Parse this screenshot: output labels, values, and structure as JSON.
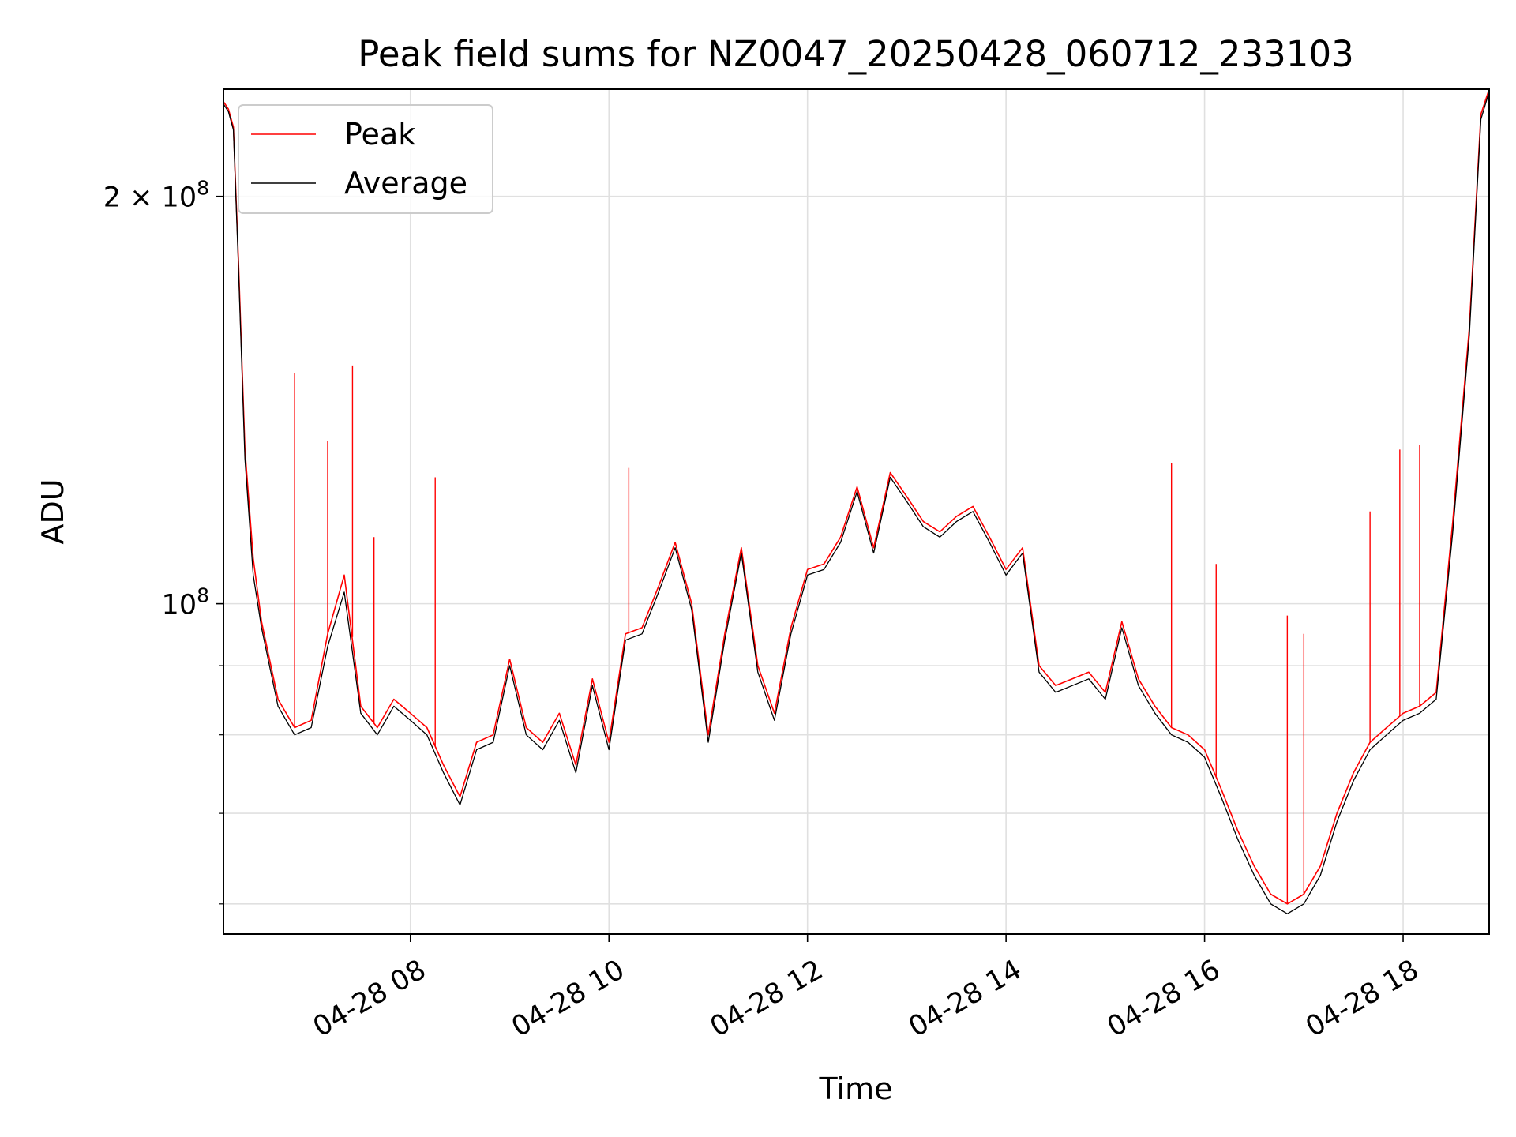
{
  "chart_data": {
    "type": "line",
    "title": "Peak field sums for NZ0047_20250428_060712_233103",
    "xlabel": "Time",
    "ylabel": "ADU",
    "y_scale": "log",
    "xlim": [
      "2025-04-28 06:07",
      "2025-04-28 18:52"
    ],
    "ylim": [
      57000000,
      240000000
    ],
    "x_ticks": [
      {
        "value": "2025-04-28 08:00",
        "label": "04-28 08"
      },
      {
        "value": "2025-04-28 10:00",
        "label": "04-28 10"
      },
      {
        "value": "2025-04-28 12:00",
        "label": "04-28 12"
      },
      {
        "value": "2025-04-28 14:00",
        "label": "04-28 14"
      },
      {
        "value": "2025-04-28 16:00",
        "label": "04-28 16"
      },
      {
        "value": "2025-04-28 18:00",
        "label": "04-28 18"
      }
    ],
    "y_major_ticks": [
      {
        "value": 100000000,
        "label": "10^8",
        "mantissa": "10",
        "exponent": "8"
      },
      {
        "value": 200000000,
        "label": "2×10^8",
        "mantissa": "2 × 10",
        "exponent": "8"
      }
    ],
    "y_minor_ticks": [
      60000000,
      70000000,
      80000000,
      90000000
    ],
    "grid": true,
    "legend_position": "top-left",
    "series": [
      {
        "name": "Peak",
        "color": "#ff0000",
        "x": [
          "2025-04-28 06:07",
          "2025-04-28 06:10",
          "2025-04-28 06:13",
          "2025-04-28 06:16",
          "2025-04-28 06:20",
          "2025-04-28 06:25",
          "2025-04-28 06:30",
          "2025-04-28 06:40",
          "2025-04-28 06:50",
          "2025-04-28 07:00",
          "2025-04-28 07:10",
          "2025-04-28 07:20",
          "2025-04-28 07:30",
          "2025-04-28 07:40",
          "2025-04-28 07:50",
          "2025-04-28 08:00",
          "2025-04-28 08:10",
          "2025-04-28 08:20",
          "2025-04-28 08:30",
          "2025-04-28 08:40",
          "2025-04-28 08:50",
          "2025-04-28 09:00",
          "2025-04-28 09:10",
          "2025-04-28 09:20",
          "2025-04-28 09:30",
          "2025-04-28 09:40",
          "2025-04-28 09:50",
          "2025-04-28 10:00",
          "2025-04-28 10:10",
          "2025-04-28 10:20",
          "2025-04-28 10:30",
          "2025-04-28 10:40",
          "2025-04-28 10:50",
          "2025-04-28 11:00",
          "2025-04-28 11:10",
          "2025-04-28 11:20",
          "2025-04-28 11:30",
          "2025-04-28 11:40",
          "2025-04-28 11:50",
          "2025-04-28 12:00",
          "2025-04-28 12:10",
          "2025-04-28 12:20",
          "2025-04-28 12:30",
          "2025-04-28 12:40",
          "2025-04-28 12:50",
          "2025-04-28 13:00",
          "2025-04-28 13:10",
          "2025-04-28 13:20",
          "2025-04-28 13:30",
          "2025-04-28 13:40",
          "2025-04-28 13:50",
          "2025-04-28 14:00",
          "2025-04-28 14:10",
          "2025-04-28 14:20",
          "2025-04-28 14:30",
          "2025-04-28 14:40",
          "2025-04-28 14:50",
          "2025-04-28 15:00",
          "2025-04-28 15:10",
          "2025-04-28 15:20",
          "2025-04-28 15:30",
          "2025-04-28 15:40",
          "2025-04-28 15:50",
          "2025-04-28 16:00",
          "2025-04-28 16:10",
          "2025-04-28 16:20",
          "2025-04-28 16:30",
          "2025-04-28 16:40",
          "2025-04-28 16:50",
          "2025-04-28 17:00",
          "2025-04-28 17:10",
          "2025-04-28 17:20",
          "2025-04-28 17:30",
          "2025-04-28 17:40",
          "2025-04-28 17:50",
          "2025-04-28 18:00",
          "2025-04-28 18:10",
          "2025-04-28 18:20",
          "2025-04-28 18:30",
          "2025-04-28 18:40",
          "2025-04-28 18:47",
          "2025-04-28 18:52"
        ],
        "y": [
          235000000,
          232000000,
          225000000,
          180000000,
          130000000,
          108000000,
          97000000,
          85000000,
          81000000,
          82000000,
          95000000,
          105000000,
          84000000,
          81000000,
          85000000,
          83000000,
          81000000,
          76000000,
          72000000,
          79000000,
          80000000,
          91000000,
          81000000,
          79000000,
          83000000,
          76000000,
          88000000,
          79000000,
          95000000,
          96000000,
          103000000,
          111000000,
          100000000,
          80000000,
          95000000,
          110000000,
          90000000,
          83000000,
          96000000,
          106000000,
          107000000,
          112000000,
          122000000,
          110000000,
          125000000,
          120000000,
          115000000,
          113000000,
          116000000,
          118000000,
          112000000,
          106000000,
          110000000,
          90000000,
          87000000,
          88000000,
          89000000,
          86000000,
          97000000,
          88000000,
          84000000,
          81000000,
          80000000,
          78000000,
          73000000,
          68000000,
          64000000,
          61000000,
          60000000,
          61000000,
          64000000,
          70000000,
          75000000,
          79000000,
          81000000,
          83000000,
          84000000,
          86000000,
          115000000,
          160000000,
          230000000,
          240000000
        ]
      },
      {
        "name": "Average",
        "color": "#000000",
        "x": [
          "2025-04-28 06:07",
          "2025-04-28 06:10",
          "2025-04-28 06:13",
          "2025-04-28 06:16",
          "2025-04-28 06:20",
          "2025-04-28 06:25",
          "2025-04-28 06:30",
          "2025-04-28 06:40",
          "2025-04-28 06:50",
          "2025-04-28 07:00",
          "2025-04-28 07:10",
          "2025-04-28 07:20",
          "2025-04-28 07:30",
          "2025-04-28 07:40",
          "2025-04-28 07:50",
          "2025-04-28 08:00",
          "2025-04-28 08:10",
          "2025-04-28 08:20",
          "2025-04-28 08:30",
          "2025-04-28 08:40",
          "2025-04-28 08:50",
          "2025-04-28 09:00",
          "2025-04-28 09:10",
          "2025-04-28 09:20",
          "2025-04-28 09:30",
          "2025-04-28 09:40",
          "2025-04-28 09:50",
          "2025-04-28 10:00",
          "2025-04-28 10:10",
          "2025-04-28 10:20",
          "2025-04-28 10:30",
          "2025-04-28 10:40",
          "2025-04-28 10:50",
          "2025-04-28 11:00",
          "2025-04-28 11:10",
          "2025-04-28 11:20",
          "2025-04-28 11:30",
          "2025-04-28 11:40",
          "2025-04-28 11:50",
          "2025-04-28 12:00",
          "2025-04-28 12:10",
          "2025-04-28 12:20",
          "2025-04-28 12:30",
          "2025-04-28 12:40",
          "2025-04-28 12:50",
          "2025-04-28 13:00",
          "2025-04-28 13:10",
          "2025-04-28 13:20",
          "2025-04-28 13:30",
          "2025-04-28 13:40",
          "2025-04-28 13:50",
          "2025-04-28 14:00",
          "2025-04-28 14:10",
          "2025-04-28 14:20",
          "2025-04-28 14:30",
          "2025-04-28 14:40",
          "2025-04-28 14:50",
          "2025-04-28 15:00",
          "2025-04-28 15:10",
          "2025-04-28 15:20",
          "2025-04-28 15:30",
          "2025-04-28 15:40",
          "2025-04-28 15:50",
          "2025-04-28 16:00",
          "2025-04-28 16:10",
          "2025-04-28 16:20",
          "2025-04-28 16:30",
          "2025-04-28 16:40",
          "2025-04-28 16:50",
          "2025-04-28 17:00",
          "2025-04-28 17:10",
          "2025-04-28 17:20",
          "2025-04-28 17:30",
          "2025-04-28 17:40",
          "2025-04-28 17:50",
          "2025-04-28 18:00",
          "2025-04-28 18:10",
          "2025-04-28 18:20",
          "2025-04-28 18:30",
          "2025-04-28 18:40",
          "2025-04-28 18:47",
          "2025-04-28 18:52"
        ],
        "y": [
          234000000,
          231000000,
          224000000,
          178000000,
          128000000,
          105000000,
          96000000,
          84000000,
          80000000,
          81000000,
          93000000,
          102000000,
          83000000,
          80000000,
          84000000,
          82000000,
          80000000,
          75000000,
          71000000,
          78000000,
          79000000,
          90000000,
          80000000,
          78000000,
          82000000,
          75000000,
          87000000,
          78000000,
          94000000,
          95000000,
          102000000,
          110000000,
          99000000,
          79000000,
          94000000,
          109000000,
          89000000,
          82000000,
          95000000,
          105000000,
          106000000,
          111000000,
          121000000,
          109000000,
          124000000,
          119000000,
          114000000,
          112000000,
          115000000,
          117000000,
          111000000,
          105000000,
          109000000,
          89000000,
          86000000,
          87000000,
          88000000,
          85000000,
          96000000,
          87000000,
          83000000,
          80000000,
          79000000,
          77000000,
          72000000,
          67000000,
          63000000,
          60000000,
          59000000,
          60000000,
          63000000,
          69000000,
          74000000,
          78000000,
          80000000,
          82000000,
          83000000,
          85000000,
          113000000,
          158000000,
          228000000,
          239000000
        ]
      }
    ],
    "peak_spikes": [
      {
        "x": "2025-04-28 06:50",
        "y": 148000000
      },
      {
        "x": "2025-04-28 07:10",
        "y": 132000000
      },
      {
        "x": "2025-04-28 07:25",
        "y": 150000000
      },
      {
        "x": "2025-04-28 07:38",
        "y": 112000000
      },
      {
        "x": "2025-04-28 08:15",
        "y": 124000000
      },
      {
        "x": "2025-04-28 10:12",
        "y": 126000000
      },
      {
        "x": "2025-04-28 15:40",
        "y": 127000000
      },
      {
        "x": "2025-04-28 16:07",
        "y": 107000000
      },
      {
        "x": "2025-04-28 16:50",
        "y": 98000000
      },
      {
        "x": "2025-04-28 17:00",
        "y": 95000000
      },
      {
        "x": "2025-04-28 17:40",
        "y": 117000000
      },
      {
        "x": "2025-04-28 17:58",
        "y": 130000000
      },
      {
        "x": "2025-04-28 18:10",
        "y": 131000000
      }
    ]
  },
  "legend": {
    "peak_label": "Peak",
    "average_label": "Average"
  }
}
